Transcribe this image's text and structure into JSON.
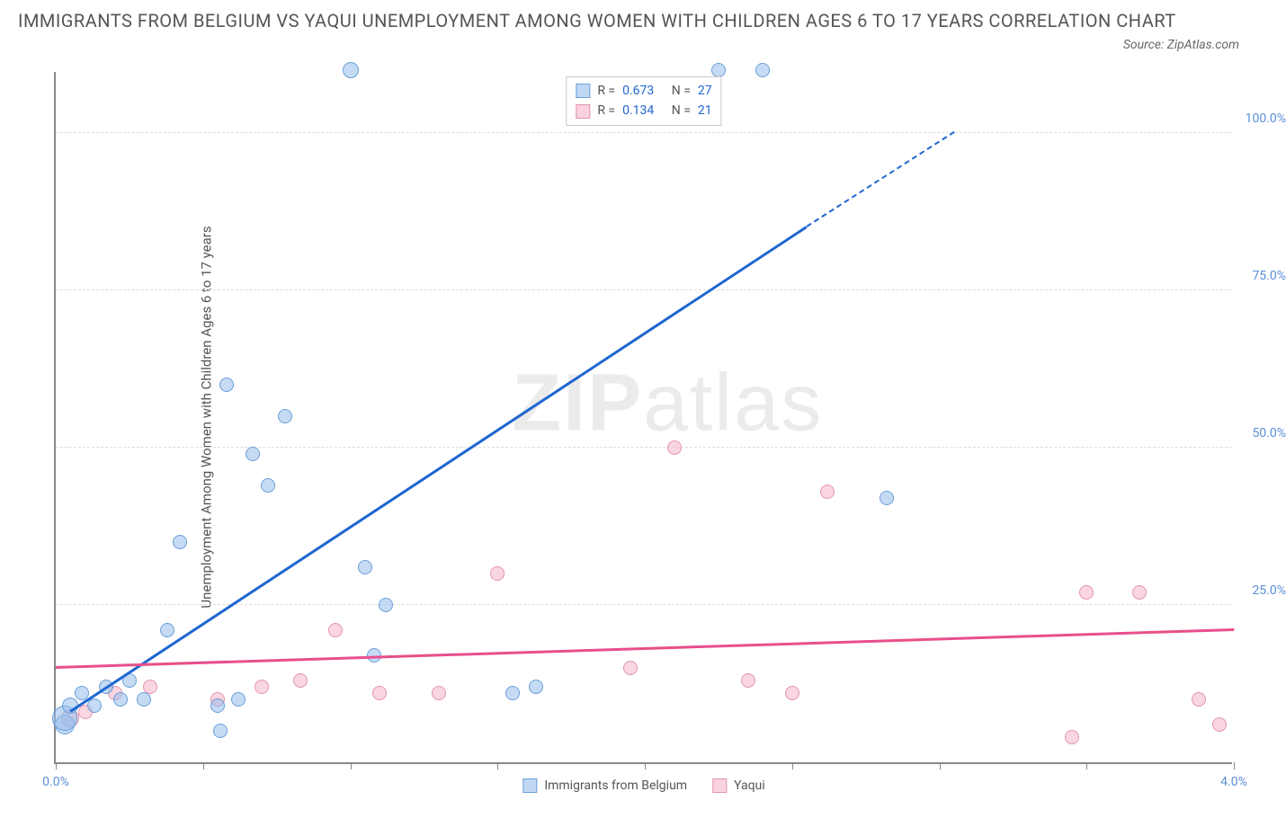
{
  "title": "IMMIGRANTS FROM BELGIUM VS YAQUI UNEMPLOYMENT AMONG WOMEN WITH CHILDREN AGES 6 TO 17 YEARS CORRELATION CHART",
  "source": "Source: ZipAtlas.com",
  "ylabel": "Unemployment Among Women with Children Ages 6 to 17 years",
  "watermark_bold": "ZIP",
  "watermark_light": "atlas",
  "chart": {
    "type": "scatter",
    "xlim": [
      0.0,
      4.0
    ],
    "ylim": [
      0.0,
      110.0
    ],
    "x_ticks": [
      0.0,
      0.5,
      1.0,
      1.5,
      2.0,
      2.5,
      3.0,
      3.5,
      4.0
    ],
    "x_tick_labels": {
      "0": "0.0%",
      "8": "4.0%"
    },
    "y_gridlines": [
      25.0,
      50.0,
      75.0,
      100.0
    ],
    "y_tick_labels": [
      "25.0%",
      "50.0%",
      "75.0%",
      "100.0%"
    ],
    "background_color": "#ffffff",
    "grid_color": "#dddddd",
    "axis_color": "#888888",
    "label_color_blue": "#5b8fd6",
    "series": {
      "blue": {
        "name": "Immigrants from Belgium",
        "R": "0.673",
        "N": "27",
        "fill": "rgba(150,190,235,0.55)",
        "stroke": "#6a9fd8",
        "trend_color": "#1e66d0",
        "trend": {
          "x1": 0.05,
          "y1": 8.0,
          "x2": 2.55,
          "y2": 85.0,
          "dash_x2": 3.05,
          "dash_y2": 100.0
        },
        "points": [
          {
            "x": 0.03,
            "y": 6,
            "r": 11
          },
          {
            "x": 0.03,
            "y": 7,
            "r": 14
          },
          {
            "x": 0.05,
            "y": 9,
            "r": 9
          },
          {
            "x": 0.09,
            "y": 11,
            "r": 8
          },
          {
            "x": 0.13,
            "y": 9,
            "r": 8
          },
          {
            "x": 0.17,
            "y": 12,
            "r": 8
          },
          {
            "x": 0.22,
            "y": 10,
            "r": 8
          },
          {
            "x": 0.25,
            "y": 13,
            "r": 8
          },
          {
            "x": 0.3,
            "y": 10,
            "r": 8
          },
          {
            "x": 0.38,
            "y": 21,
            "r": 8
          },
          {
            "x": 0.42,
            "y": 35,
            "r": 8
          },
          {
            "x": 0.55,
            "y": 9,
            "r": 8
          },
          {
            "x": 0.56,
            "y": 5,
            "r": 8
          },
          {
            "x": 0.58,
            "y": 60,
            "r": 8
          },
          {
            "x": 0.62,
            "y": 10,
            "r": 8
          },
          {
            "x": 0.67,
            "y": 49,
            "r": 8
          },
          {
            "x": 0.72,
            "y": 44,
            "r": 8
          },
          {
            "x": 0.78,
            "y": 55,
            "r": 8
          },
          {
            "x": 1.0,
            "y": 110,
            "r": 9
          },
          {
            "x": 1.05,
            "y": 31,
            "r": 8
          },
          {
            "x": 1.08,
            "y": 17,
            "r": 8
          },
          {
            "x": 1.12,
            "y": 25,
            "r": 8
          },
          {
            "x": 1.55,
            "y": 11,
            "r": 8
          },
          {
            "x": 1.63,
            "y": 12,
            "r": 8
          },
          {
            "x": 2.25,
            "y": 110,
            "r": 8
          },
          {
            "x": 2.4,
            "y": 110,
            "r": 8
          },
          {
            "x": 2.82,
            "y": 42,
            "r": 8
          }
        ]
      },
      "pink": {
        "name": "Yaqui",
        "R": "0.134",
        "N": "21",
        "fill": "rgba(245,180,200,0.55)",
        "stroke": "#e195ac",
        "trend_color": "#e84f8a",
        "trend": {
          "x1": 0.0,
          "y1": 15.0,
          "x2": 4.0,
          "y2": 21.0
        },
        "points": [
          {
            "x": 0.05,
            "y": 7,
            "r": 10
          },
          {
            "x": 0.1,
            "y": 8,
            "r": 8
          },
          {
            "x": 0.2,
            "y": 11,
            "r": 8
          },
          {
            "x": 0.32,
            "y": 12,
            "r": 8
          },
          {
            "x": 0.55,
            "y": 10,
            "r": 8
          },
          {
            "x": 0.7,
            "y": 12,
            "r": 8
          },
          {
            "x": 0.83,
            "y": 13,
            "r": 8
          },
          {
            "x": 0.95,
            "y": 21,
            "r": 8
          },
          {
            "x": 1.1,
            "y": 11,
            "r": 8
          },
          {
            "x": 1.3,
            "y": 11,
            "r": 8
          },
          {
            "x": 1.5,
            "y": 30,
            "r": 8
          },
          {
            "x": 1.95,
            "y": 15,
            "r": 8
          },
          {
            "x": 2.1,
            "y": 50,
            "r": 8
          },
          {
            "x": 2.35,
            "y": 13,
            "r": 8
          },
          {
            "x": 2.5,
            "y": 11,
            "r": 8
          },
          {
            "x": 2.62,
            "y": 43,
            "r": 8
          },
          {
            "x": 3.45,
            "y": 4,
            "r": 8
          },
          {
            "x": 3.5,
            "y": 27,
            "r": 8
          },
          {
            "x": 3.68,
            "y": 27,
            "r": 8
          },
          {
            "x": 3.88,
            "y": 10,
            "r": 8
          },
          {
            "x": 3.95,
            "y": 6,
            "r": 8
          }
        ]
      }
    }
  },
  "legend_top_labels": {
    "R": "R =",
    "N": "N ="
  },
  "legend_bottom": [
    "Immigrants from Belgium",
    "Yaqui"
  ]
}
